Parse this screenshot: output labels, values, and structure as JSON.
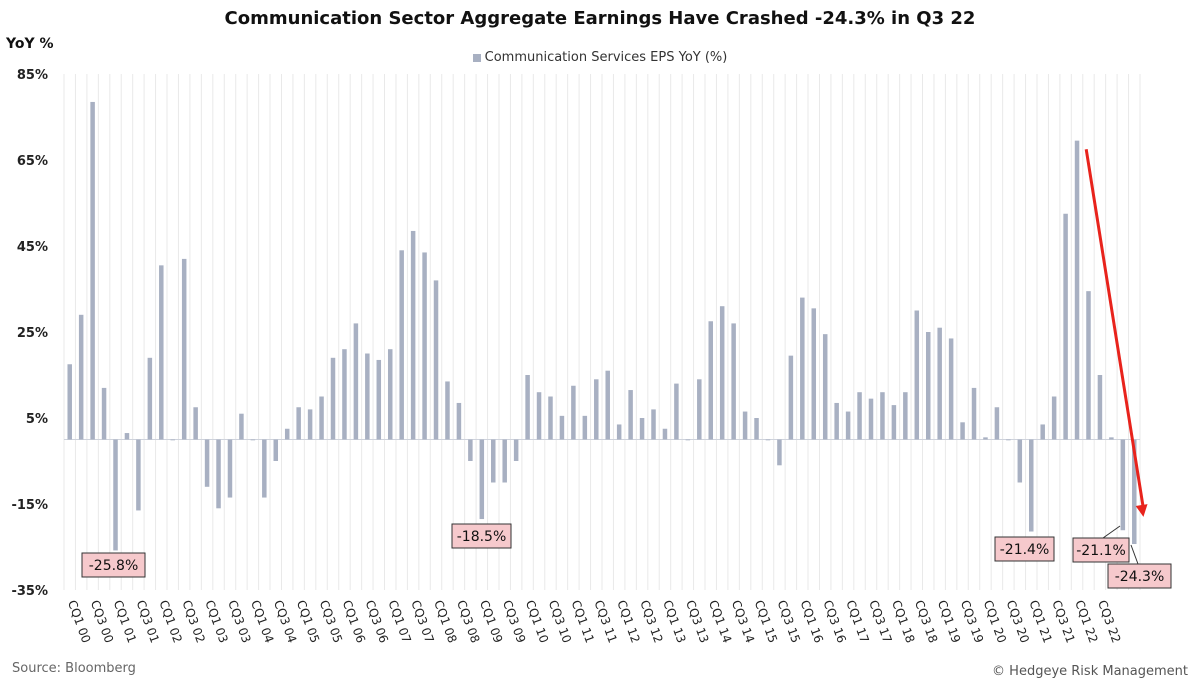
{
  "header": {
    "title": "Communication Sector Aggregate Earnings Have Crashed -24.3% in Q3 22",
    "source": "Source: Bloomberg",
    "credit": "© Hedgeye Risk Management"
  },
  "colors": {
    "bar": "#a8b0c2",
    "arrow": "#e8231c",
    "callout_bg": "#f6c9cc",
    "callout_border": "#333333",
    "grid": "#e9e9e9"
  },
  "chart_data": {
    "type": "bar",
    "title": "Communication Sector Aggregate Earnings Have Crashed -24.3% in Q3 22",
    "ylabel": "YoY %",
    "xlabel": "",
    "ylim": [
      -35,
      85
    ],
    "yticks": [
      85,
      65,
      45,
      25,
      5,
      -15,
      -35
    ],
    "ytick_labels": [
      "85%",
      "65%",
      "45%",
      "25%",
      "5%",
      "-15%",
      "-35%"
    ],
    "legend": [
      "Communication Services EPS YoY (%)"
    ],
    "legend_position": "top-center",
    "grid": "vertical",
    "x_tick_labels": [
      "CQ1 00",
      "CQ3 00",
      "CQ1 01",
      "CQ3 01",
      "CQ1 02",
      "CQ3 02",
      "CQ1 03",
      "CQ3 03",
      "CQ1 04",
      "CQ3 04",
      "CQ1 05",
      "CQ3 05",
      "CQ1 06",
      "CQ3 06",
      "CQ1 07",
      "CQ3 07",
      "CQ1 08",
      "CQ3 08",
      "CQ1 09",
      "CQ3 09",
      "CQ1 10",
      "CQ3 10",
      "CQ1 11",
      "CQ3 11",
      "CQ1 12",
      "CQ3 12",
      "CQ1 13",
      "CQ3 13",
      "CQ1 14",
      "CQ3 14",
      "CQ1 15",
      "CQ3 15",
      "CQ1 16",
      "CQ3 16",
      "CQ1 17",
      "CQ3 17",
      "CQ1 18",
      "CQ3 18",
      "CQ1 19",
      "CQ3 19",
      "CQ1 20",
      "CQ3 20",
      "CQ1 21",
      "CQ3 21",
      "CQ1 22",
      "CQ3 22"
    ],
    "series": [
      {
        "name": "Communication Services EPS YoY (%)",
        "values": [
          17.5,
          29,
          78.5,
          12,
          -25.8,
          1.5,
          -16.5,
          19,
          40.5,
          0,
          42,
          7.5,
          -11,
          -16,
          -13.5,
          6,
          0,
          -13.5,
          -5,
          2.5,
          7.5,
          7,
          10,
          19,
          21,
          27,
          20,
          18.5,
          21,
          44,
          48.5,
          43.5,
          37,
          13.5,
          8.5,
          -5,
          -18.5,
          -10,
          -10,
          -5,
          15,
          11,
          10,
          5.5,
          12.5,
          5.5,
          14,
          16,
          3.5,
          11.5,
          5,
          7,
          2.5,
          13,
          0,
          14,
          27.5,
          31,
          27,
          6.5,
          5,
          0,
          -6,
          19.5,
          33,
          30.5,
          24.5,
          8.5,
          6.5,
          11,
          9.5,
          11,
          8,
          11,
          30,
          25,
          26,
          23.5,
          4,
          12,
          0.5,
          7.5,
          0,
          -10,
          -21.4,
          3.5,
          10,
          52.5,
          69.5,
          34.5,
          15,
          0.5,
          -21.1,
          -24.3
        ]
      }
    ],
    "annotations": [
      {
        "label": "-25.8%",
        "index": 4
      },
      {
        "label": "-18.5%",
        "index": 36
      },
      {
        "label": "-21.4%",
        "index": 84
      },
      {
        "label": "-21.1%",
        "index": 92
      },
      {
        "label": "-24.3%",
        "index": 93
      }
    ],
    "arrow": {
      "from_value": 67.5,
      "to_value": -18,
      "from_index": 89.3,
      "to_index": 94.3
    }
  }
}
